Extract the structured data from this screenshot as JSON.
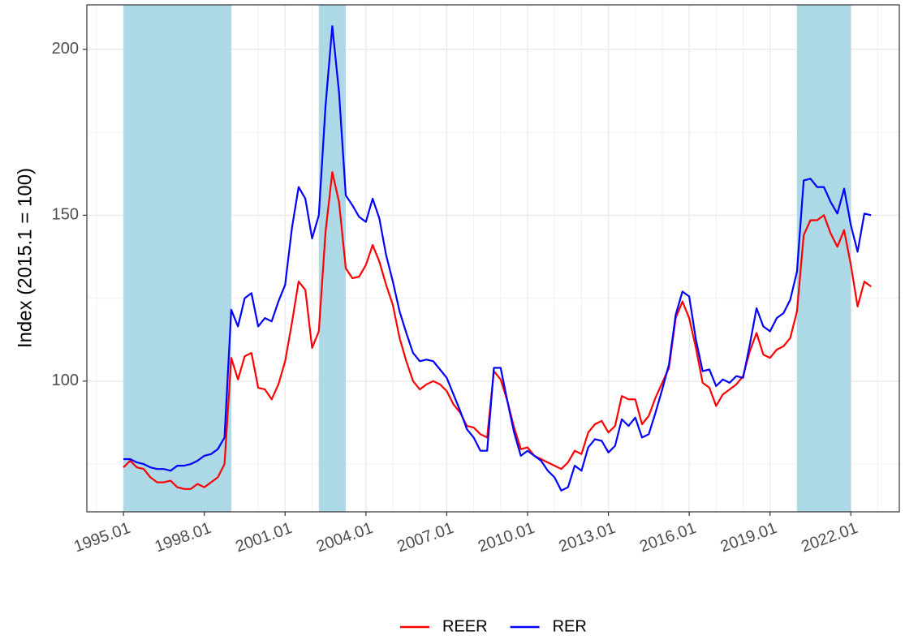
{
  "chart_data": {
    "type": "line",
    "ylabel": "Index (2015.1 = 100)",
    "x": [
      1995,
      1995.25,
      1995.5,
      1995.75,
      1996,
      1996.25,
      1996.5,
      1996.75,
      1997,
      1997.25,
      1997.5,
      1997.75,
      1998,
      1998.25,
      1998.5,
      1998.75,
      1999,
      1999.25,
      1999.5,
      1999.75,
      2000,
      2000.25,
      2000.5,
      2000.75,
      2001,
      2001.25,
      2001.5,
      2001.75,
      2002,
      2002.25,
      2002.5,
      2002.75,
      2003,
      2003.25,
      2003.5,
      2003.75,
      2004,
      2004.25,
      2004.5,
      2004.75,
      2005,
      2005.25,
      2005.5,
      2005.75,
      2006,
      2006.25,
      2006.5,
      2006.75,
      2007,
      2007.25,
      2007.5,
      2007.75,
      2008,
      2008.25,
      2008.5,
      2008.75,
      2009,
      2009.25,
      2009.5,
      2009.75,
      2010,
      2010.25,
      2010.5,
      2010.75,
      2011,
      2011.25,
      2011.5,
      2011.75,
      2012,
      2012.25,
      2012.5,
      2012.75,
      2013,
      2013.25,
      2013.5,
      2013.75,
      2014,
      2014.25,
      2014.5,
      2014.75,
      2015,
      2015.25,
      2015.5,
      2015.75,
      2016,
      2016.25,
      2016.5,
      2016.75,
      2017,
      2017.25,
      2017.5,
      2017.75,
      2018,
      2018.25,
      2018.5,
      2018.75,
      2019,
      2019.25,
      2019.5,
      2019.75,
      2020,
      2020.25,
      2020.5,
      2020.75,
      2021,
      2021.25,
      2021.5,
      2021.75,
      2022,
      2022.25,
      2022.5,
      2022.75
    ],
    "series": [
      {
        "name": "REER",
        "color": "#ff0000",
        "values": [
          74,
          76,
          74,
          73.5,
          71,
          69.5,
          69.5,
          70,
          68,
          67.5,
          67.5,
          69,
          68,
          69.5,
          71,
          75,
          107,
          100.5,
          107.5,
          108.5,
          98,
          97.5,
          94.5,
          99,
          106,
          117.5,
          130,
          127.5,
          110,
          115,
          145,
          163,
          154,
          134,
          131,
          131.5,
          135,
          141,
          136,
          129,
          123,
          113,
          106,
          100,
          97.5,
          99,
          100,
          99,
          97,
          93,
          90.5,
          86.5,
          86,
          84,
          83,
          103,
          100.5,
          94,
          86,
          79.5,
          80,
          77.5,
          76.5,
          75.5,
          74.5,
          73.5,
          75.5,
          79,
          78,
          84.5,
          87,
          88,
          84.5,
          86.5,
          95.5,
          94.5,
          94.5,
          87,
          89.5,
          95,
          99.5,
          104,
          119,
          124,
          119,
          110,
          99.5,
          98,
          92.5,
          96,
          97.5,
          99,
          101.5,
          109,
          114.5,
          108,
          107,
          109.5,
          110.5,
          113,
          121,
          144,
          148.5,
          148.5,
          150,
          144.5,
          140.5,
          145.5,
          135,
          122.5,
          130,
          128.5
        ]
      },
      {
        "name": "RER",
        "color": "#0000ff",
        "values": [
          76.5,
          76.5,
          75.5,
          75,
          74,
          73.5,
          73.5,
          73,
          74.5,
          74.5,
          75,
          76,
          77.5,
          78,
          79.5,
          83,
          121.5,
          116.5,
          125,
          126.5,
          116.5,
          119,
          118,
          124,
          129,
          146,
          158.5,
          155,
          143,
          150,
          183,
          207,
          187,
          156,
          153,
          149.5,
          148,
          155,
          149,
          138,
          130,
          121,
          114.5,
          108.5,
          106,
          106.5,
          106,
          103.5,
          101,
          96,
          91,
          85.5,
          83,
          79,
          79,
          104,
          104,
          94,
          84.5,
          77.5,
          79,
          77.5,
          76,
          73,
          71,
          67,
          68,
          74.5,
          73,
          80,
          82.5,
          82,
          78.5,
          80.5,
          88.5,
          86.5,
          89,
          83,
          84,
          90.5,
          97.5,
          105,
          120,
          127,
          125.5,
          112.5,
          103,
          103.5,
          98.5,
          100.5,
          99.5,
          101.5,
          101,
          111,
          122,
          116.5,
          115,
          119,
          120.5,
          124.5,
          133,
          160.5,
          161,
          158.5,
          158.5,
          154,
          150.5,
          158,
          147,
          139,
          150.5,
          150
        ]
      }
    ],
    "shaded": [
      [
        1995,
        1999
      ],
      [
        2002.25,
        2003.25
      ],
      [
        2020,
        2022
      ]
    ],
    "shade_color": "#add8e6",
    "xlim": [
      1993.64,
      2023.8
    ],
    "xticks": [
      {
        "value": 1995,
        "label": "1995.01"
      },
      {
        "value": 1998,
        "label": "1998.01"
      },
      {
        "value": 2001,
        "label": "2001.01"
      },
      {
        "value": 2004,
        "label": "2004.01"
      },
      {
        "value": 2007,
        "label": "2007.01"
      },
      {
        "value": 2010,
        "label": "2010.01"
      },
      {
        "value": 2013,
        "label": "2013.01"
      },
      {
        "value": 2016,
        "label": "2016.01"
      },
      {
        "value": 2019,
        "label": "2019.01"
      },
      {
        "value": 2022,
        "label": "2022.01"
      }
    ],
    "ylim": [
      60.6,
      213.4
    ],
    "yticks": [
      100,
      150,
      200
    ],
    "grid": true,
    "legend": "bottom"
  }
}
